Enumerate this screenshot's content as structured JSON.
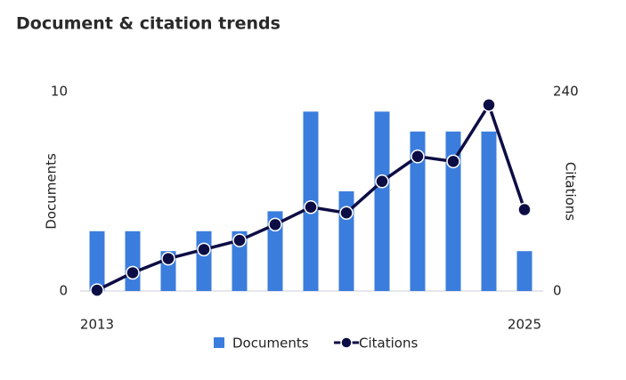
{
  "chart_data": {
    "type": "bar_line",
    "title": "Document & citation trends",
    "ylabel": "Documents",
    "y2label": "Citations",
    "categories": [
      "2013",
      null,
      null,
      null,
      null,
      null,
      null,
      null,
      null,
      null,
      null,
      null,
      "2025"
    ],
    "series": [
      {
        "name": "Documents",
        "type": "bar",
        "color": "#3b7ddd",
        "values": [
          3,
          3,
          2,
          3,
          3,
          4,
          9,
          5,
          9,
          8,
          8,
          8,
          2
        ]
      },
      {
        "name": "Citations",
        "type": "line",
        "axis": "y2",
        "color": "#0d0d45",
        "values": [
          1,
          22,
          39,
          50,
          61,
          80,
          101,
          94,
          132,
          162,
          156,
          224,
          98
        ]
      }
    ],
    "ylim": [
      0,
      10
    ],
    "yticks": [
      0,
      10
    ],
    "y2lim": [
      0,
      240
    ],
    "y2ticks": [
      0,
      240
    ],
    "legend": "bottom"
  }
}
